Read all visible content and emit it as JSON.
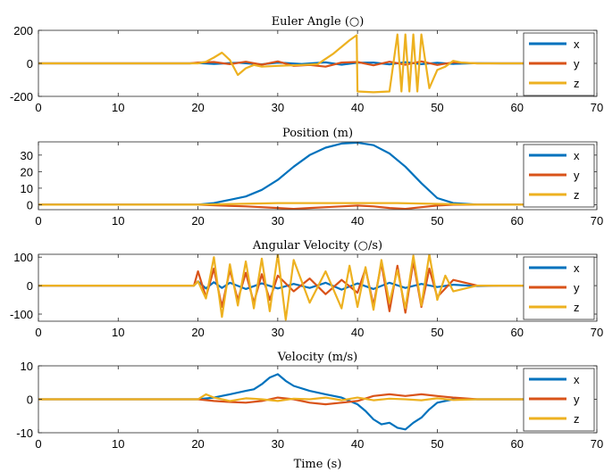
{
  "chart_data": [
    {
      "type": "line",
      "title": "Euler Angle (○)",
      "xlim": [
        0,
        70
      ],
      "ylim": [
        -200,
        200
      ],
      "xticks": [
        0,
        10,
        20,
        30,
        40,
        50,
        60,
        70
      ],
      "yticks": [
        -200,
        0,
        200
      ],
      "legend_position": "right",
      "series": [
        {
          "name": "x",
          "color": "#0072BD",
          "x": [
            0,
            19,
            20,
            22,
            25,
            28,
            30,
            33,
            36,
            38,
            40,
            42,
            44,
            46,
            48,
            50,
            52,
            55,
            58,
            62
          ],
          "y": [
            0,
            0,
            2,
            -3,
            4,
            -6,
            5,
            -4,
            6,
            -8,
            4,
            5,
            -6,
            7,
            -5,
            4,
            -3,
            1,
            0,
            0
          ]
        },
        {
          "name": "y",
          "color": "#D95319",
          "x": [
            0,
            19,
            20,
            22,
            24,
            26,
            28,
            30,
            32,
            34,
            36,
            38,
            40,
            42,
            44,
            46,
            48,
            50,
            52,
            55,
            62
          ],
          "y": [
            0,
            0,
            5,
            8,
            -5,
            10,
            -8,
            12,
            -15,
            -10,
            -20,
            5,
            8,
            -12,
            10,
            -8,
            12,
            -10,
            6,
            0,
            0
          ]
        },
        {
          "name": "z",
          "color": "#EDB120",
          "x": [
            0,
            20,
            21,
            22,
            23,
            24,
            25,
            26,
            27,
            28,
            30,
            33,
            35,
            37,
            38,
            39,
            39.9,
            40,
            42,
            44,
            45,
            45.5,
            46,
            46.5,
            47,
            47.5,
            48,
            49,
            50,
            51,
            52,
            53,
            55,
            62
          ],
          "y": [
            0,
            0,
            10,
            35,
            65,
            20,
            -70,
            -30,
            -10,
            -20,
            -15,
            -10,
            -5,
            60,
            100,
            140,
            170,
            -170,
            -175,
            -170,
            175,
            -170,
            175,
            -170,
            175,
            -170,
            175,
            -150,
            -40,
            -20,
            15,
            5,
            0,
            0
          ]
        }
      ]
    },
    {
      "type": "line",
      "title": "Position (m)",
      "xlim": [
        0,
        70
      ],
      "ylim": [
        -3,
        38
      ],
      "xticks": [
        0,
        10,
        20,
        30,
        40,
        50,
        60,
        70
      ],
      "yticks": [
        0,
        10,
        20,
        30
      ],
      "legend_position": "right",
      "series": [
        {
          "name": "x",
          "color": "#0072BD",
          "x": [
            0,
            20,
            22,
            24,
            26,
            28,
            30,
            32,
            34,
            36,
            38,
            40,
            42,
            44,
            46,
            48,
            50,
            52,
            55,
            62
          ],
          "y": [
            0,
            0,
            1,
            3,
            5,
            9,
            15,
            23,
            30,
            34.5,
            37,
            37.5,
            36,
            31,
            23,
            13,
            4,
            1,
            0,
            0
          ]
        },
        {
          "name": "y",
          "color": "#D95319",
          "x": [
            0,
            20,
            23,
            26,
            28,
            30,
            32,
            34,
            36,
            38,
            40,
            42,
            44,
            46,
            48,
            50,
            52,
            62
          ],
          "y": [
            0,
            0,
            -0.5,
            -1,
            -1.5,
            -2,
            -2.5,
            -2,
            -1.5,
            -1,
            -0.5,
            -1,
            -2,
            -2.5,
            -1.5,
            -0.5,
            0,
            0
          ]
        },
        {
          "name": "z",
          "color": "#EDB120",
          "x": [
            0,
            20,
            25,
            30,
            35,
            40,
            45,
            50,
            55,
            62
          ],
          "y": [
            0,
            0,
            0.5,
            1,
            1,
            1,
            1,
            0.5,
            0,
            0
          ]
        }
      ]
    },
    {
      "type": "line",
      "title": "Angular Velocity (○/s)",
      "xlim": [
        0,
        70
      ],
      "ylim": [
        -125,
        110
      ],
      "xticks": [
        0,
        10,
        20,
        30,
        40,
        50,
        60,
        70
      ],
      "yticks": [
        -100,
        0,
        100
      ],
      "legend_position": "right",
      "series": [
        {
          "name": "x",
          "color": "#0072BD",
          "x": [
            0,
            19.5,
            20,
            21,
            22,
            23,
            24,
            26,
            28,
            30,
            32,
            34,
            36,
            38,
            40,
            42,
            44,
            46,
            48,
            50,
            52,
            55,
            58,
            62
          ],
          "y": [
            0,
            0,
            15,
            -10,
            12,
            -8,
            10,
            -12,
            8,
            -10,
            6,
            -8,
            10,
            -14,
            8,
            -12,
            10,
            -8,
            6,
            -5,
            3,
            -2,
            0,
            0
          ]
        },
        {
          "name": "y",
          "color": "#D95319",
          "x": [
            0,
            19.5,
            20,
            21,
            22,
            23,
            24,
            25,
            26,
            27,
            28,
            29,
            30,
            32,
            34,
            36,
            38,
            40,
            41,
            42,
            43,
            44,
            45,
            46,
            47,
            48,
            49,
            50,
            52,
            55,
            62
          ],
          "y": [
            0,
            0,
            50,
            -40,
            60,
            -75,
            55,
            -50,
            45,
            -60,
            40,
            -50,
            35,
            -20,
            25,
            -30,
            20,
            -25,
            60,
            -70,
            80,
            -90,
            70,
            -95,
            85,
            -75,
            60,
            -40,
            20,
            0,
            0
          ]
        },
        {
          "name": "z",
          "color": "#EDB120",
          "x": [
            0,
            19.5,
            20,
            21,
            22,
            23,
            24,
            25,
            26,
            27,
            28,
            29,
            30,
            31,
            32,
            34,
            36,
            38,
            39,
            40,
            41,
            42,
            43,
            44,
            45,
            46,
            47,
            48,
            49,
            50,
            51,
            52,
            55,
            62
          ],
          "y": [
            0,
            0,
            15,
            -45,
            100,
            -110,
            75,
            -70,
            85,
            -80,
            95,
            -90,
            110,
            -120,
            90,
            -60,
            50,
            -80,
            70,
            -75,
            65,
            -85,
            90,
            -60,
            55,
            -80,
            105,
            -70,
            110,
            -50,
            35,
            -20,
            0,
            0
          ]
        }
      ]
    },
    {
      "type": "line",
      "title": "Velocity (m/s)",
      "xlabel": "Time (s)",
      "xlim": [
        0,
        70
      ],
      "ylim": [
        -10,
        10
      ],
      "xticks": [
        0,
        10,
        20,
        30,
        40,
        50,
        60,
        70
      ],
      "yticks": [
        -10,
        0,
        10
      ],
      "legend_position": "right",
      "series": [
        {
          "name": "x",
          "color": "#0072BD",
          "x": [
            0,
            20,
            22,
            24,
            26,
            27,
            28,
            29,
            30,
            31,
            32,
            34,
            36,
            38,
            40,
            41,
            42,
            43,
            44,
            45,
            46,
            47,
            48,
            49,
            50,
            52,
            55,
            62
          ],
          "y": [
            0,
            0,
            0.5,
            1.5,
            2.5,
            3,
            4.5,
            6.5,
            7.5,
            5.5,
            4,
            2.5,
            1.5,
            0.5,
            -1.5,
            -3.5,
            -6,
            -7.5,
            -7,
            -8.5,
            -9,
            -7,
            -5.5,
            -3,
            -1,
            0,
            0,
            0
          ]
        },
        {
          "name": "y",
          "color": "#D95319",
          "x": [
            0,
            20,
            22,
            24,
            26,
            28,
            30,
            32,
            34,
            36,
            38,
            40,
            42,
            44,
            46,
            48,
            50,
            52,
            55,
            62
          ],
          "y": [
            0,
            0,
            -0.5,
            -0.8,
            -1,
            -0.5,
            0.5,
            0,
            -1,
            -1.5,
            -1,
            -0.5,
            1,
            1.5,
            1,
            1.5,
            1,
            0.5,
            0,
            0
          ]
        },
        {
          "name": "z",
          "color": "#EDB120",
          "x": [
            0,
            20,
            21,
            22,
            24,
            26,
            28,
            30,
            32,
            34,
            36,
            38,
            40,
            42,
            44,
            46,
            48,
            50,
            52,
            55,
            62
          ],
          "y": [
            0,
            0,
            1.5,
            0.5,
            -0.5,
            0.3,
            0,
            -0.5,
            0.2,
            0,
            0.5,
            -0.3,
            0.5,
            -0.3,
            0.2,
            0,
            -0.3,
            0.3,
            -0.2,
            0,
            0
          ]
        }
      ]
    }
  ]
}
